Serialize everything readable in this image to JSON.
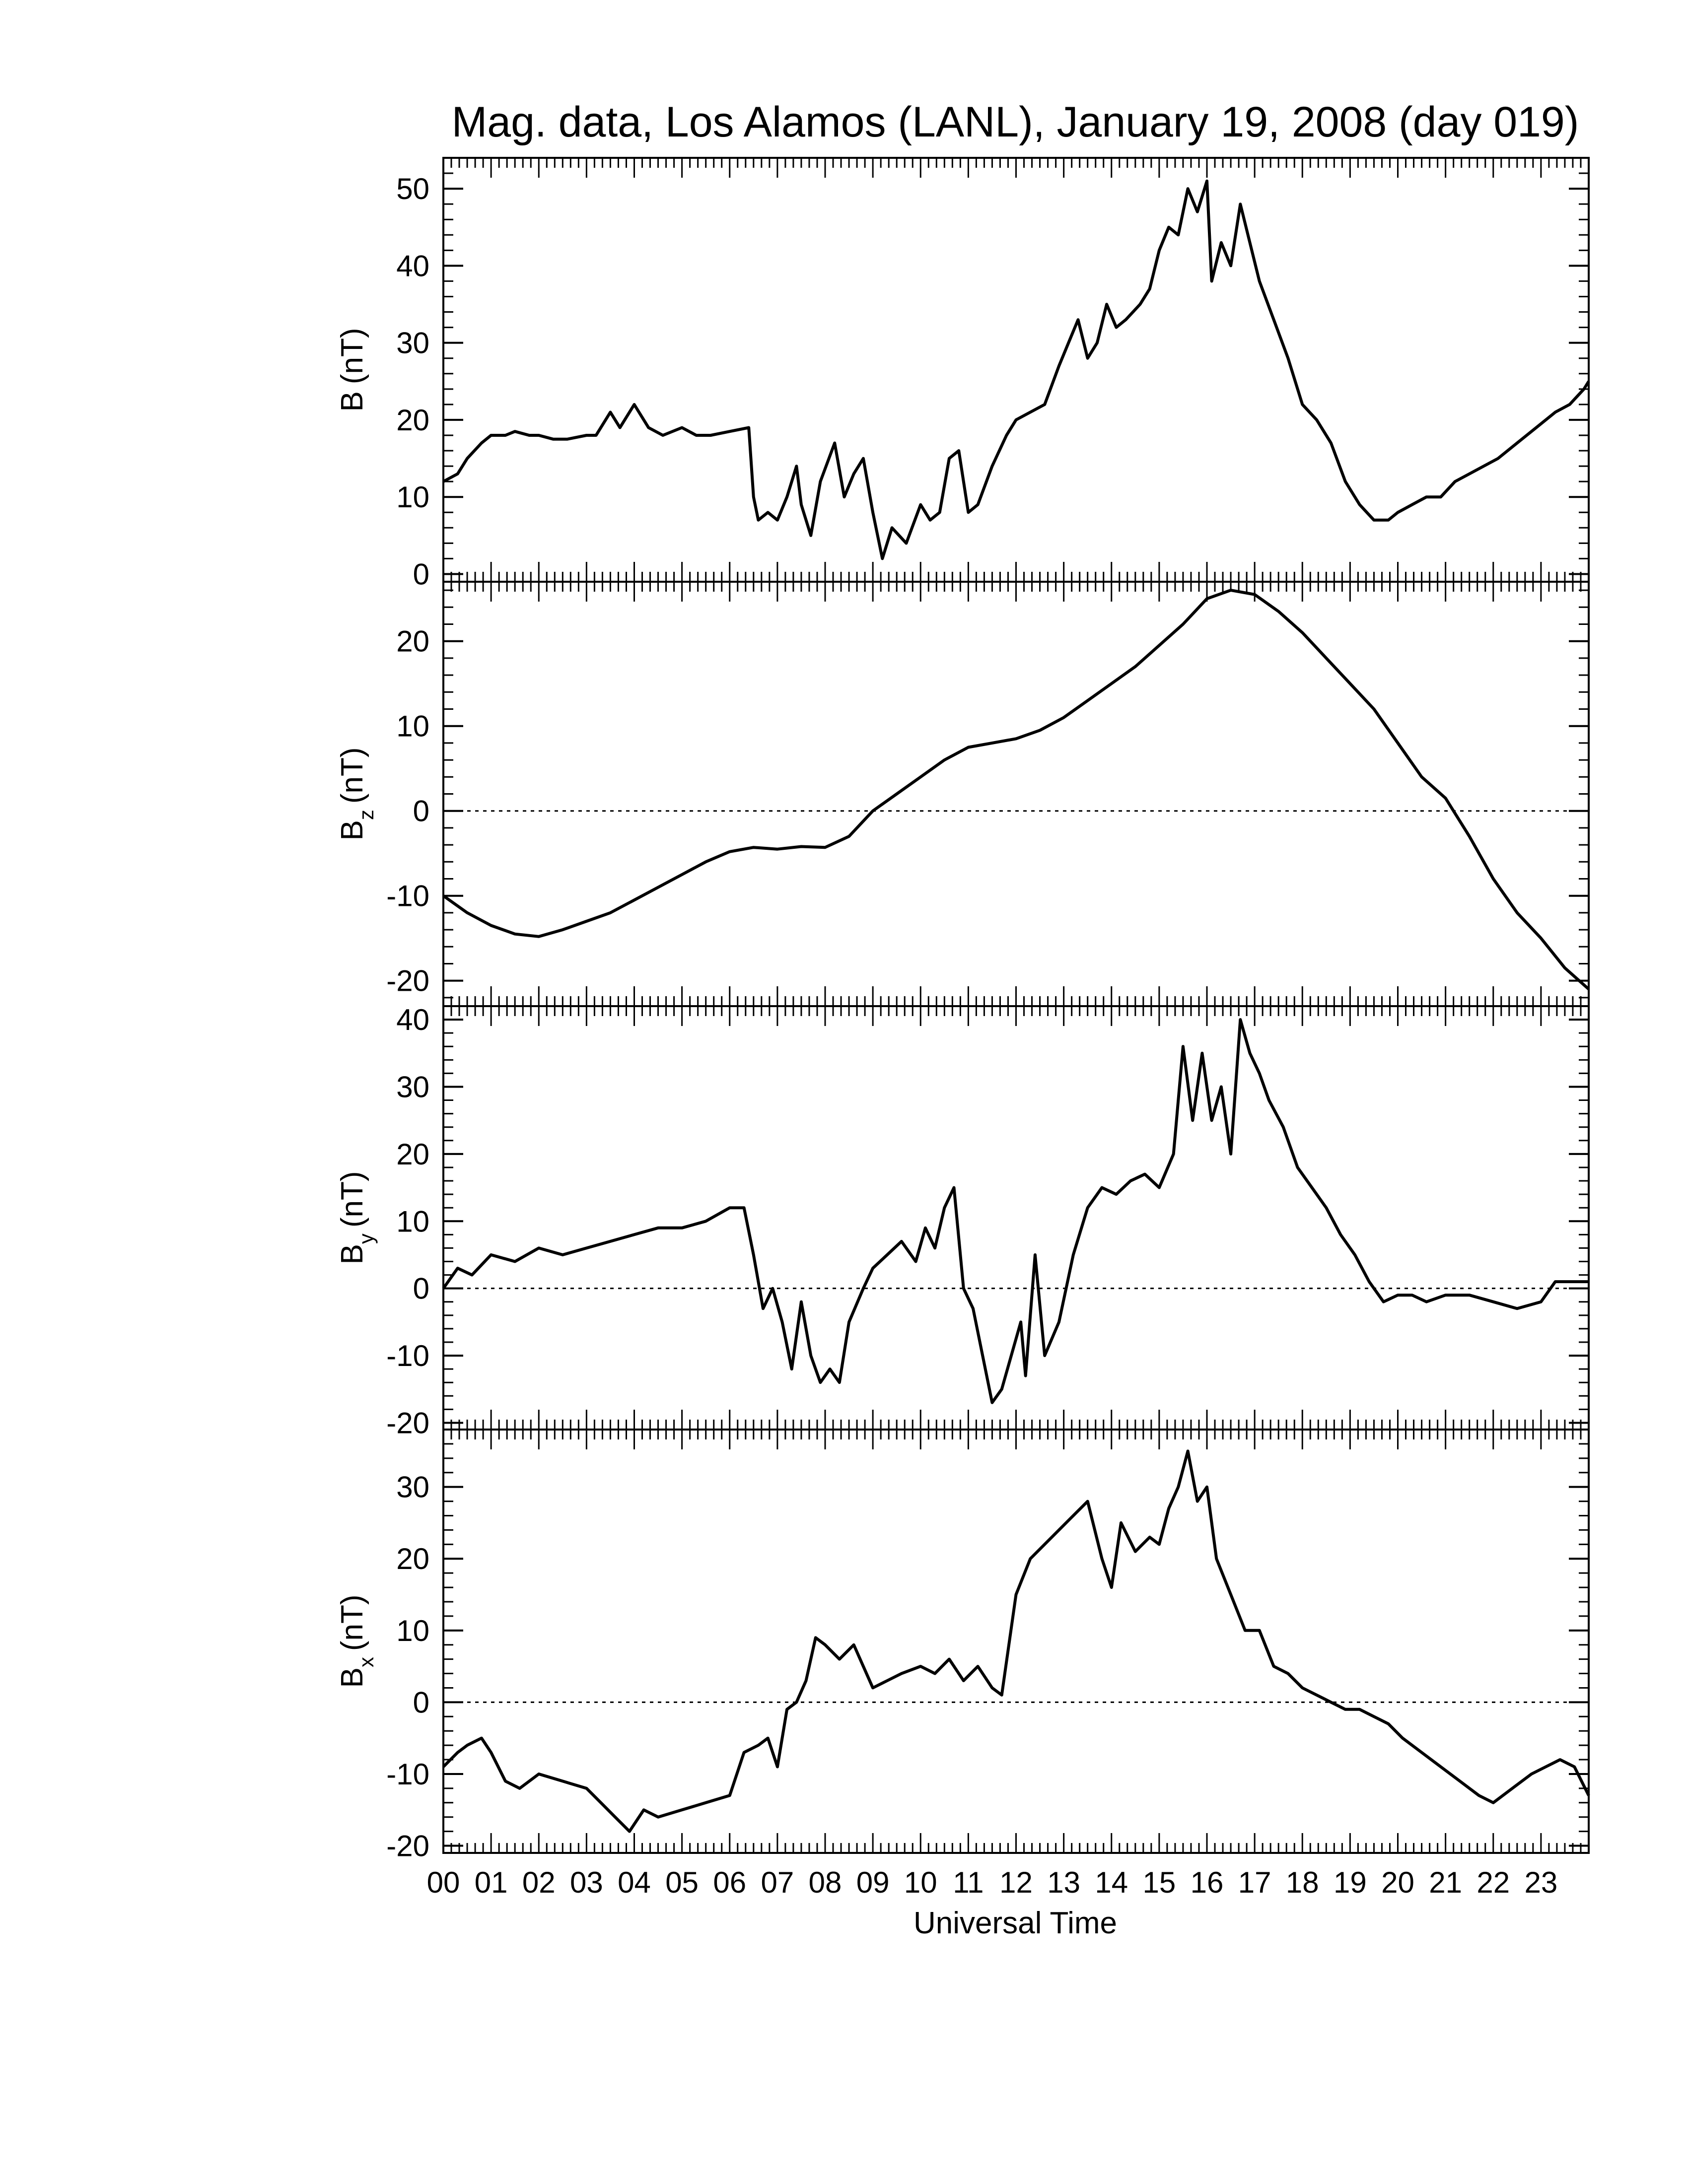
{
  "chart_data": {
    "type": "line",
    "title": "Mag. data, Los Alamos (LANL), January 19, 2008 (day 019)",
    "xlabel": "Universal Time",
    "x_range_hours": [
      0,
      24
    ],
    "x_tick_labels": [
      "00",
      "01",
      "02",
      "03",
      "04",
      "05",
      "06",
      "07",
      "08",
      "09",
      "10",
      "11",
      "12",
      "13",
      "14",
      "15",
      "16",
      "17",
      "18",
      "19",
      "20",
      "21",
      "22",
      "23"
    ],
    "panels": [
      {
        "id": "B",
        "ylabel": "B (nT)",
        "ylabel_main": "B",
        "ylabel_sub": "",
        "ylabel_unit": "(nT)",
        "ylim": [
          -1,
          54
        ],
        "yticks": [
          0,
          10,
          20,
          30,
          40,
          50
        ],
        "zero_line": false,
        "series": [
          {
            "x": [
              0,
              0.3,
              0.5,
              0.8,
              1.0,
              1.3,
              1.5,
              1.8,
              2.0,
              2.3,
              2.6,
              3.0,
              3.2,
              3.5,
              3.7,
              4.0,
              4.3,
              4.6,
              5.0,
              5.3,
              5.6,
              6.0,
              6.4,
              6.5,
              6.6,
              6.8,
              7.0,
              7.2,
              7.4,
              7.5,
              7.7,
              7.9,
              8.2,
              8.4,
              8.6,
              8.8,
              9.0,
              9.2,
              9.4,
              9.7,
              10.0,
              10.2,
              10.4,
              10.6,
              10.8,
              11.0,
              11.2,
              11.5,
              11.8,
              12.0,
              12.3,
              12.6,
              12.9,
              13.1,
              13.3,
              13.5,
              13.7,
              13.9,
              14.1,
              14.3,
              14.6,
              14.8,
              15.0,
              15.2,
              15.4,
              15.6,
              15.8,
              16.0,
              16.1,
              16.3,
              16.5,
              16.7,
              16.9,
              17.1,
              17.4,
              17.7,
              18.0,
              18.3,
              18.6,
              18.9,
              19.2,
              19.5,
              19.8,
              20.0,
              20.3,
              20.6,
              20.9,
              21.2,
              21.5,
              21.8,
              22.1,
              22.5,
              22.9,
              23.3,
              23.6,
              23.9,
              24.0
            ],
            "y": [
              12,
              13,
              15,
              17,
              18,
              18,
              18.5,
              18,
              18,
              17.5,
              17.5,
              18,
              18,
              21,
              19,
              22,
              19,
              18,
              19,
              18,
              18,
              18.5,
              19,
              10,
              7,
              8,
              7,
              10,
              14,
              9,
              5,
              12,
              17,
              10,
              13,
              15,
              8,
              2,
              6,
              4,
              9,
              7,
              8,
              15,
              16,
              8,
              9,
              14,
              18,
              20,
              21,
              22,
              27,
              30,
              33,
              28,
              30,
              35,
              32,
              33,
              35,
              37,
              42,
              45,
              44,
              50,
              47,
              51,
              38,
              43,
              40,
              48,
              43,
              38,
              33,
              28,
              22,
              20,
              17,
              12,
              9,
              7,
              7,
              8,
              9,
              10,
              10,
              12,
              13,
              14,
              15,
              17,
              19,
              21,
              22,
              24,
              25
            ]
          }
        ]
      },
      {
        "id": "Bz",
        "ylabel": "Bz (nT)",
        "ylabel_main": "B",
        "ylabel_sub": "z",
        "ylabel_unit": "(nT)",
        "ylim": [
          -23,
          27
        ],
        "yticks": [
          -20,
          -10,
          0,
          10,
          20
        ],
        "zero_line": true,
        "series": [
          {
            "x": [
              0,
              0.5,
              1.0,
              1.5,
              2.0,
              2.5,
              3.0,
              3.5,
              4.0,
              4.5,
              5.0,
              5.5,
              6.0,
              6.5,
              7.0,
              7.5,
              8.0,
              8.5,
              9.0,
              9.5,
              10.0,
              10.5,
              11.0,
              11.5,
              12.0,
              12.5,
              13.0,
              13.5,
              14.0,
              14.5,
              15.0,
              15.5,
              16.0,
              16.5,
              17.0,
              17.5,
              18.0,
              18.5,
              19.0,
              19.5,
              20.0,
              20.5,
              21.0,
              21.5,
              22.0,
              22.5,
              23.0,
              23.5,
              24.0
            ],
            "y": [
              -10,
              -12,
              -13.5,
              -14.5,
              -14.8,
              -14,
              -13,
              -12,
              -10.5,
              -9,
              -7.5,
              -6,
              -4.8,
              -4.3,
              -4.5,
              -4.2,
              -4.3,
              -3,
              0,
              2,
              4,
              6,
              7.5,
              8,
              8.5,
              9.5,
              11,
              13,
              15,
              17,
              19.5,
              22,
              25,
              26,
              25.5,
              23.5,
              21,
              18,
              15,
              12,
              8,
              4,
              1.5,
              -3,
              -8,
              -12,
              -15,
              -18.5,
              -21
            ]
          }
        ]
      },
      {
        "id": "By",
        "ylabel": "By (nT)",
        "ylabel_main": "B",
        "ylabel_sub": "y",
        "ylabel_unit": "(nT)",
        "ylim": [
          -21,
          42
        ],
        "yticks": [
          -20,
          -10,
          0,
          10,
          20,
          30,
          40
        ],
        "zero_line": true,
        "series": [
          {
            "x": [
              0,
              0.3,
              0.6,
              1.0,
              1.5,
              2.0,
              2.5,
              3.0,
              3.5,
              4.0,
              4.5,
              5.0,
              5.5,
              6.0,
              6.3,
              6.5,
              6.7,
              6.9,
              7.1,
              7.3,
              7.5,
              7.7,
              7.9,
              8.1,
              8.3,
              8.5,
              8.8,
              9.0,
              9.3,
              9.6,
              9.9,
              10.1,
              10.3,
              10.5,
              10.7,
              10.9,
              11.1,
              11.3,
              11.5,
              11.7,
              11.9,
              12.1,
              12.2,
              12.4,
              12.6,
              12.9,
              13.2,
              13.5,
              13.8,
              14.1,
              14.4,
              14.7,
              15.0,
              15.3,
              15.5,
              15.7,
              15.9,
              16.1,
              16.3,
              16.5,
              16.7,
              16.9,
              17.1,
              17.3,
              17.6,
              17.9,
              18.2,
              18.5,
              18.8,
              19.1,
              19.4,
              19.7,
              20.0,
              20.3,
              20.6,
              21.0,
              21.5,
              22.0,
              22.5,
              23.0,
              23.3,
              23.6,
              24.0
            ],
            "y": [
              0,
              3,
              2,
              5,
              4,
              6,
              5,
              6,
              7,
              8,
              9,
              9,
              10,
              12,
              12,
              5,
              -3,
              0,
              -5,
              -12,
              -2,
              -10,
              -14,
              -12,
              -14,
              -5,
              0,
              3,
              5,
              7,
              4,
              9,
              6,
              12,
              15,
              0,
              -3,
              -10,
              -17,
              -15,
              -10,
              -5,
              -13,
              5,
              -10,
              -5,
              5,
              12,
              15,
              14,
              16,
              17,
              15,
              20,
              36,
              25,
              35,
              25,
              30,
              20,
              40,
              35,
              32,
              28,
              24,
              18,
              15,
              12,
              8,
              5,
              1,
              -2,
              -1,
              -1,
              -2,
              -1,
              -1,
              -2,
              -3,
              -2,
              1,
              1,
              1
            ]
          }
        ]
      },
      {
        "id": "Bx",
        "ylabel": "Bx (nT)",
        "ylabel_main": "B",
        "ylabel_sub": "x",
        "ylabel_unit": "(nT)",
        "ylim": [
          -21,
          38
        ],
        "yticks": [
          -20,
          -10,
          0,
          10,
          20,
          30
        ],
        "zero_line": true,
        "series": [
          {
            "x": [
              0,
              0.3,
              0.5,
              0.8,
              1.0,
              1.3,
              1.6,
              2.0,
              2.5,
              3.0,
              3.3,
              3.6,
              3.9,
              4.2,
              4.5,
              5.0,
              5.5,
              6.0,
              6.3,
              6.6,
              6.8,
              7.0,
              7.2,
              7.4,
              7.6,
              7.8,
              8.0,
              8.3,
              8.6,
              8.8,
              9.0,
              9.3,
              9.6,
              10.0,
              10.3,
              10.6,
              10.9,
              11.2,
              11.5,
              11.7,
              12.0,
              12.3,
              12.6,
              12.9,
              13.2,
              13.5,
              13.8,
              14.0,
              14.2,
              14.5,
              14.8,
              15.0,
              15.2,
              15.4,
              15.6,
              15.8,
              16.0,
              16.2,
              16.5,
              16.8,
              17.1,
              17.4,
              17.7,
              18.0,
              18.3,
              18.6,
              18.9,
              19.2,
              19.5,
              19.8,
              20.1,
              20.5,
              20.9,
              21.3,
              21.7,
              22.0,
              22.4,
              22.8,
              23.1,
              23.4,
              23.7,
              24.0
            ],
            "y": [
              -9,
              -7,
              -6,
              -5,
              -7,
              -11,
              -12,
              -10,
              -11,
              -12,
              -14,
              -16,
              -18,
              -15,
              -16,
              -15,
              -14,
              -13,
              -7,
              -6,
              -5,
              -9,
              -1,
              0,
              3,
              9,
              8,
              6,
              8,
              5,
              2,
              3,
              4,
              5,
              4,
              6,
              3,
              5,
              2,
              1,
              15,
              20,
              22,
              24,
              26,
              28,
              20,
              16,
              25,
              21,
              23,
              22,
              27,
              30,
              35,
              28,
              30,
              20,
              15,
              10,
              10,
              5,
              4,
              2,
              1,
              0,
              -1,
              -1,
              -2,
              -3,
              -5,
              -7,
              -9,
              -11,
              -13,
              -14,
              -12,
              -10,
              -9,
              -8,
              -9,
              -13
            ]
          }
        ]
      }
    ]
  }
}
